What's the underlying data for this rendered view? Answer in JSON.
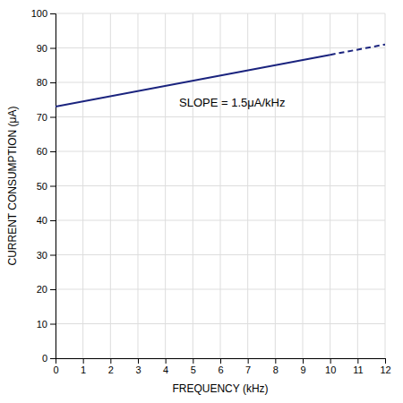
{
  "chart_data": {
    "type": "line",
    "x": [
      0,
      10,
      12
    ],
    "series": [
      {
        "color": "#1a237e",
        "line_style": "solid",
        "values": [
          73,
          88,
          null
        ]
      },
      {
        "color": "#1a237e",
        "line_style": "dashed",
        "values": [
          null,
          88,
          91
        ]
      }
    ],
    "xlabel": "FREQUENCY (kHz)",
    "ylabel": "CURRENT CONSUMPTION (μA)",
    "xlim": [
      0,
      12
    ],
    "ylim": [
      0,
      100
    ],
    "xticks": [
      0,
      1,
      2,
      3,
      4,
      5,
      6,
      7,
      8,
      9,
      10,
      11,
      12
    ],
    "yticks": [
      0,
      10,
      20,
      30,
      40,
      50,
      60,
      70,
      80,
      90,
      100
    ],
    "annotations": [
      {
        "text": "SLOPE = 1.5μA/kHz",
        "x": 4.5,
        "y": 74
      }
    ],
    "grid": true
  }
}
